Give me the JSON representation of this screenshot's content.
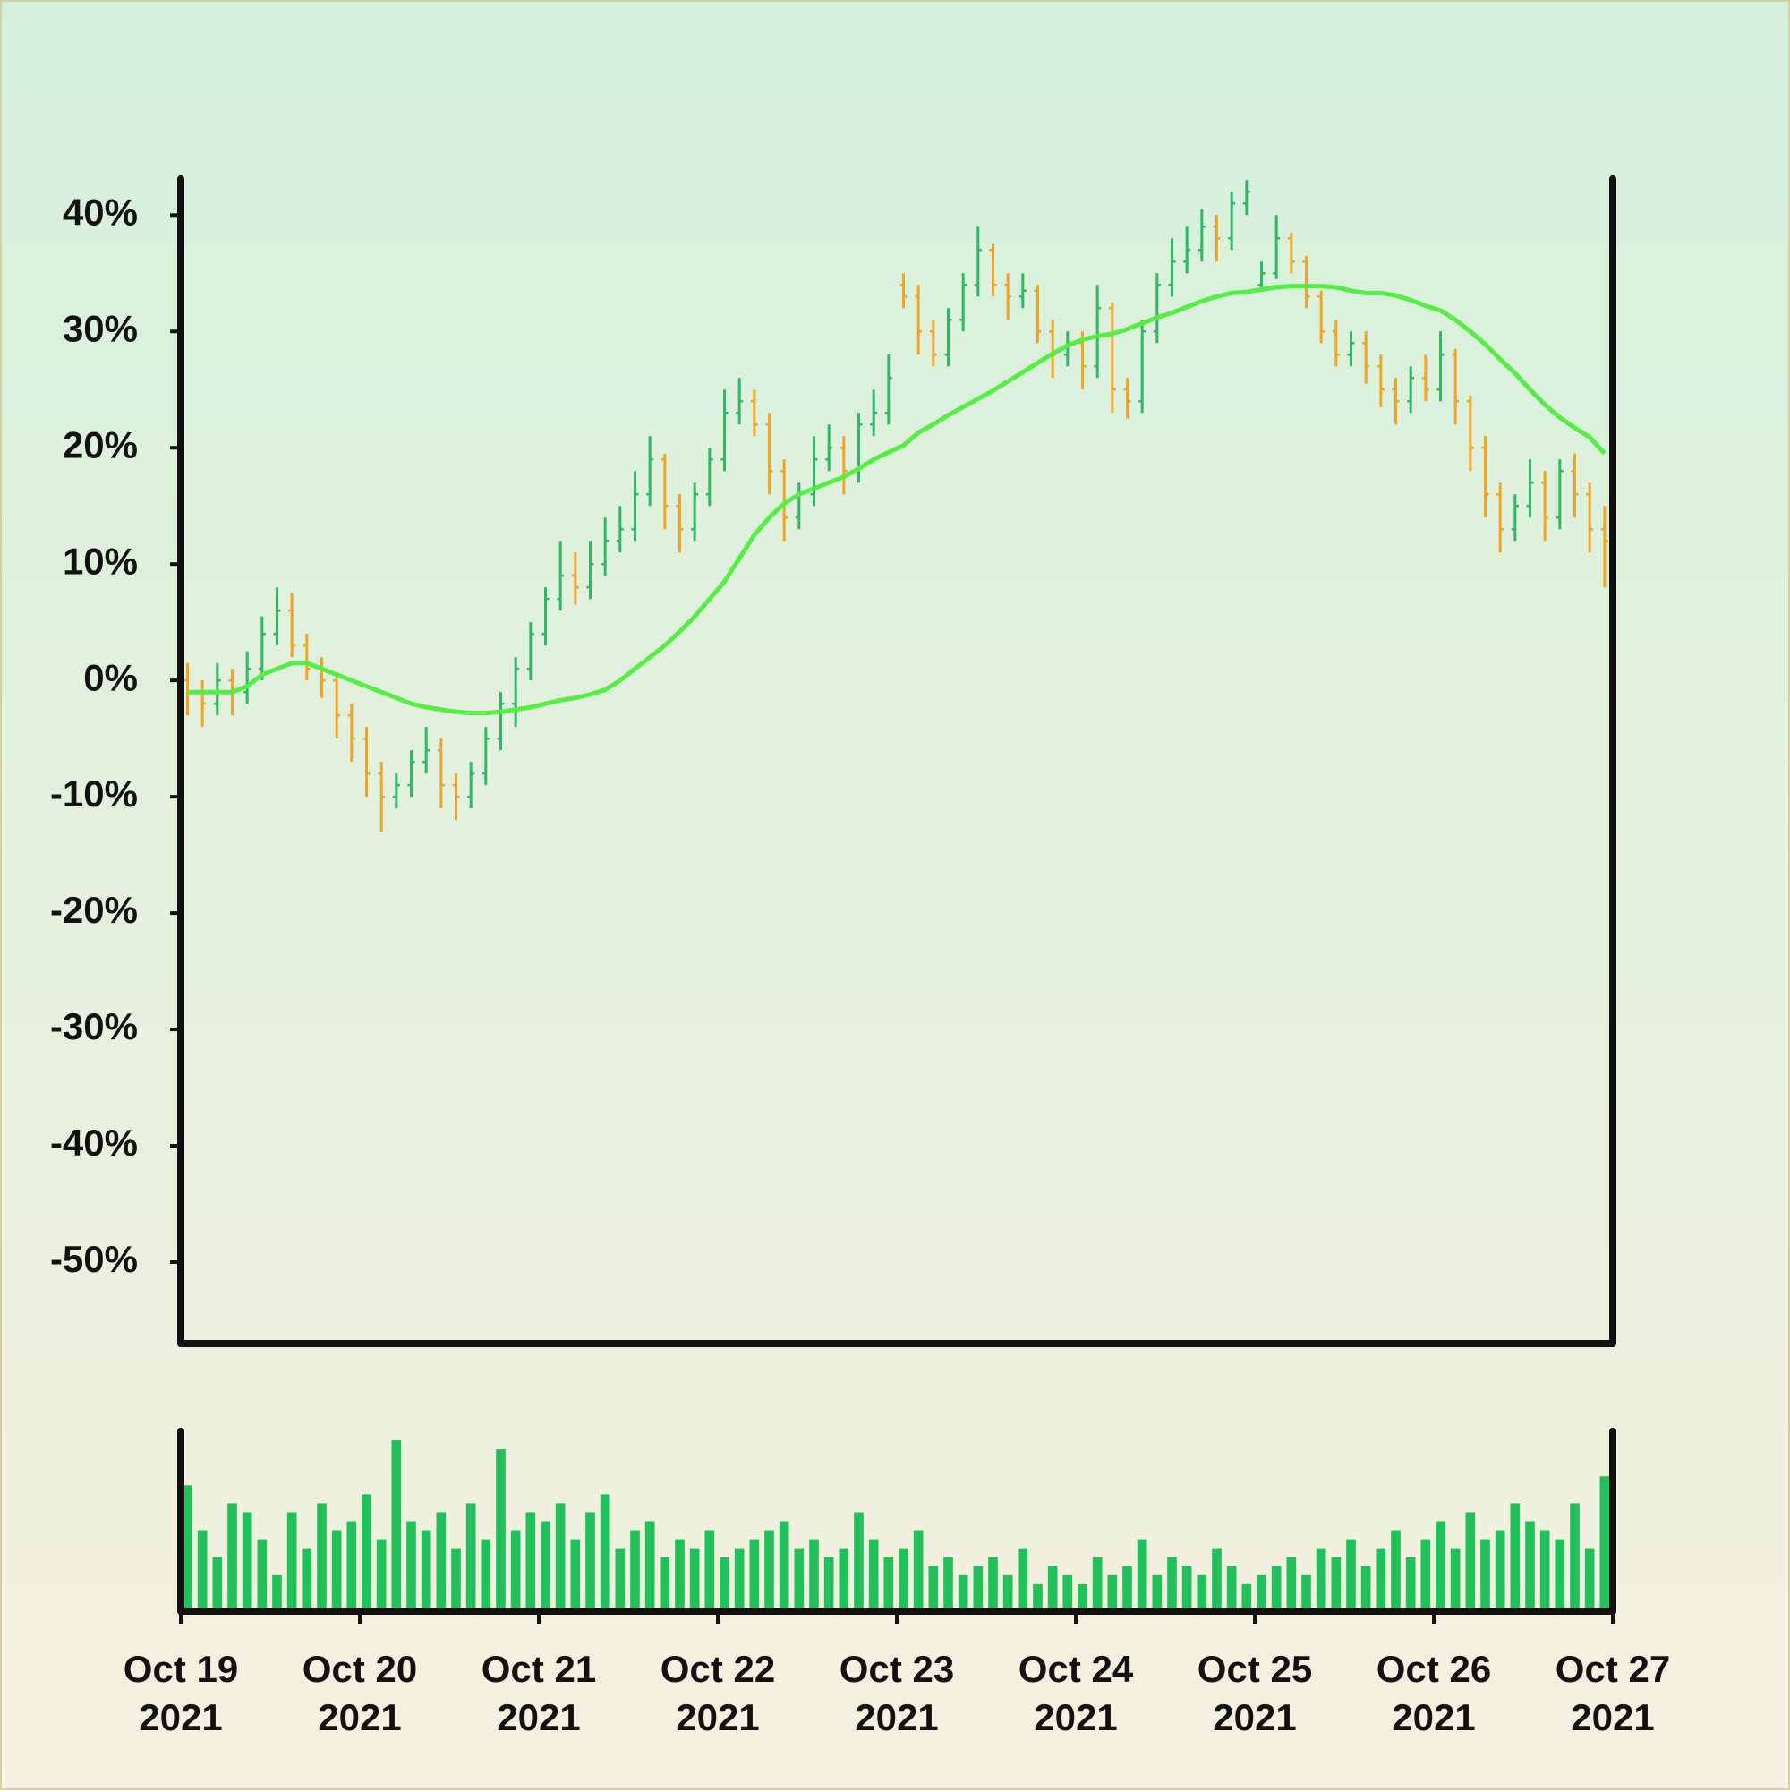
{
  "chart_data": {
    "type": "ohlc",
    "open": [
      0,
      -1,
      -2,
      0,
      -1,
      1,
      4,
      6,
      3,
      1,
      0,
      -3,
      -5,
      -8,
      -10,
      -9,
      -7,
      -6,
      -9,
      -10,
      -8,
      -5,
      -2,
      1,
      4,
      7,
      9,
      8,
      10,
      12,
      13,
      16,
      19,
      15,
      13,
      16,
      19,
      23,
      24,
      22,
      18,
      14,
      16,
      19,
      20,
      18,
      22,
      23,
      34,
      33,
      30,
      28,
      31,
      34,
      37,
      34,
      33,
      33.5,
      30,
      28,
      29,
      27,
      32,
      25,
      24,
      30,
      34,
      36,
      37,
      39,
      38,
      41,
      34,
      35,
      38,
      36,
      33,
      30,
      28,
      29,
      27,
      25,
      24,
      26,
      25,
      28,
      24,
      20,
      16,
      13,
      15,
      17,
      14,
      18,
      16,
      13
    ],
    "high": [
      1.5,
      0,
      1.5,
      1,
      2.5,
      5.5,
      8,
      7.5,
      4,
      2,
      0.5,
      -2,
      -4,
      -7,
      -8,
      -6,
      -4,
      -5,
      -8,
      -7,
      -4,
      -1,
      2,
      5,
      8,
      12,
      11,
      12,
      14,
      15,
      18,
      21,
      19.5,
      16,
      17,
      20,
      25,
      26,
      25,
      23,
      19,
      17,
      21,
      22,
      21,
      23,
      25,
      28,
      35,
      34,
      31,
      32,
      35,
      39,
      37.5,
      35,
      35,
      34,
      31,
      30,
      30,
      34,
      32.5,
      26,
      31,
      35,
      38,
      39,
      40.5,
      40,
      42,
      43,
      36,
      40,
      38.5,
      36.5,
      33.5,
      31,
      30,
      30,
      28,
      26,
      27,
      28,
      30,
      28.5,
      24.5,
      21,
      17,
      16,
      19,
      18,
      19,
      19.5,
      17,
      15
    ],
    "low": [
      -3,
      -4,
      -3,
      -3,
      -2,
      0,
      3,
      2,
      0,
      -1.5,
      -5,
      -7,
      -10,
      -13,
      -11,
      -10,
      -8,
      -11,
      -12,
      -11,
      -9,
      -6,
      -4,
      0,
      3,
      6,
      6.5,
      7,
      9,
      11,
      12,
      15,
      13,
      11,
      12,
      15,
      18,
      22,
      21,
      16,
      12,
      13,
      15,
      18,
      16,
      17,
      21,
      22,
      32,
      28,
      27,
      27,
      30,
      33,
      33,
      31,
      32,
      29,
      26,
      27,
      25,
      26,
      23,
      22.5,
      23,
      29,
      33,
      35,
      36,
      36,
      37,
      40,
      33.5,
      34.5,
      35,
      32,
      29,
      27,
      27,
      25.5,
      23.5,
      22,
      23,
      24,
      24,
      22,
      18,
      14,
      11,
      12,
      14,
      12,
      13,
      14,
      11,
      8
    ],
    "close": [
      -1,
      -2,
      0,
      -1,
      1,
      4,
      6,
      3,
      1,
      0,
      -3,
      -5,
      -8,
      -10,
      -9,
      -7,
      -6,
      -9,
      -10,
      -8,
      -5,
      -2,
      1,
      4,
      7,
      9,
      8,
      10,
      12,
      13,
      16,
      19,
      15,
      13,
      16,
      19,
      23,
      24,
      22,
      18,
      14,
      16,
      19,
      20,
      18,
      22,
      23,
      26,
      33,
      30,
      28,
      31,
      34,
      37,
      34,
      33,
      33.5,
      30,
      28,
      29,
      27,
      32,
      25,
      24,
      30,
      34,
      36,
      37,
      39,
      38,
      41,
      42,
      35,
      38,
      36,
      33,
      30,
      28,
      29,
      27,
      25,
      24,
      26,
      25,
      28,
      24,
      20,
      16,
      13,
      15,
      17,
      14,
      18,
      16,
      13,
      12
    ],
    "up_color": "#2fb865",
    "down_color": "#f0a526",
    "ma": {
      "color": "#55ee44",
      "values": [
        -1,
        -1,
        -1,
        -1,
        -0.5,
        0.5,
        1,
        1.5,
        1.5,
        1,
        0.5,
        0,
        -0.5,
        -1,
        -1.5,
        -2,
        -2.3,
        -2.5,
        -2.7,
        -2.8,
        -2.8,
        -2.7,
        -2.5,
        -2.3,
        -2,
        -1.7,
        -1.5,
        -1.2,
        -0.8,
        0,
        1,
        2,
        3,
        4.2,
        5.5,
        7,
        8.5,
        10.5,
        12.5,
        14,
        15.2,
        16,
        16.5,
        17,
        17.5,
        18.2,
        19,
        19.6,
        20.2,
        21.3,
        22,
        22.8,
        23.5,
        24.2,
        24.9,
        25.7,
        26.5,
        27.3,
        28.1,
        28.8,
        29.3,
        29.6,
        29.8,
        30.2,
        30.7,
        31.2,
        31.6,
        32.1,
        32.6,
        33,
        33.3,
        33.4,
        33.6,
        33.8,
        33.9,
        33.9,
        33.9,
        33.8,
        33.5,
        33.3,
        33.3,
        33.1,
        32.7,
        32.2,
        31.8,
        31,
        30,
        28.9,
        27.6,
        26.4,
        25,
        23.7,
        22.6,
        21.7,
        20.9,
        19.5
      ]
    },
    "volume": {
      "color": "#22c05a",
      "ylim": [
        0,
        100
      ],
      "values": [
        70,
        45,
        30,
        60,
        55,
        40,
        20,
        55,
        35,
        60,
        45,
        50,
        65,
        40,
        95,
        50,
        45,
        55,
        35,
        60,
        40,
        90,
        45,
        55,
        50,
        60,
        40,
        55,
        65,
        35,
        45,
        50,
        30,
        40,
        35,
        45,
        30,
        35,
        40,
        45,
        50,
        35,
        40,
        30,
        35,
        55,
        40,
        30,
        35,
        45,
        25,
        30,
        20,
        25,
        30,
        20,
        35,
        15,
        25,
        20,
        15,
        30,
        20,
        25,
        40,
        20,
        30,
        25,
        20,
        35,
        25,
        15,
        20,
        25,
        30,
        20,
        35,
        30,
        40,
        25,
        35,
        45,
        30,
        40,
        50,
        35,
        55,
        40,
        45,
        60,
        50,
        45,
        40,
        60,
        35,
        75
      ]
    },
    "ylim": [
      -57,
      43.1
    ],
    "yticks": [
      {
        "value": -50,
        "label": "-50%"
      },
      {
        "value": -40,
        "label": "-40%"
      },
      {
        "value": -30,
        "label": "-30%"
      },
      {
        "value": -20,
        "label": "-20%"
      },
      {
        "value": -10,
        "label": "-10%"
      },
      {
        "value": 0,
        "label": "0%"
      },
      {
        "value": 10,
        "label": "10%"
      },
      {
        "value": 20,
        "label": "20%"
      },
      {
        "value": 30,
        "label": "30%"
      },
      {
        "value": 40,
        "label": "40%"
      }
    ],
    "xlim": [
      0,
      96
    ],
    "xticks": [
      {
        "value": 0,
        "label": "Oct 19\n2021"
      },
      {
        "value": 12,
        "label": "Oct 20\n2021"
      },
      {
        "value": 24,
        "label": "Oct 21\n2021"
      },
      {
        "value": 36,
        "label": "Oct 22\n2021"
      },
      {
        "value": 48,
        "label": "Oct 23\n2021"
      },
      {
        "value": 60,
        "label": "Oct 24\n2021"
      },
      {
        "value": 72,
        "label": "Oct 25\n2021"
      },
      {
        "value": 84,
        "label": "Oct 26\n2021"
      },
      {
        "value": 96,
        "label": "Oct 27\n2021"
      }
    ]
  }
}
